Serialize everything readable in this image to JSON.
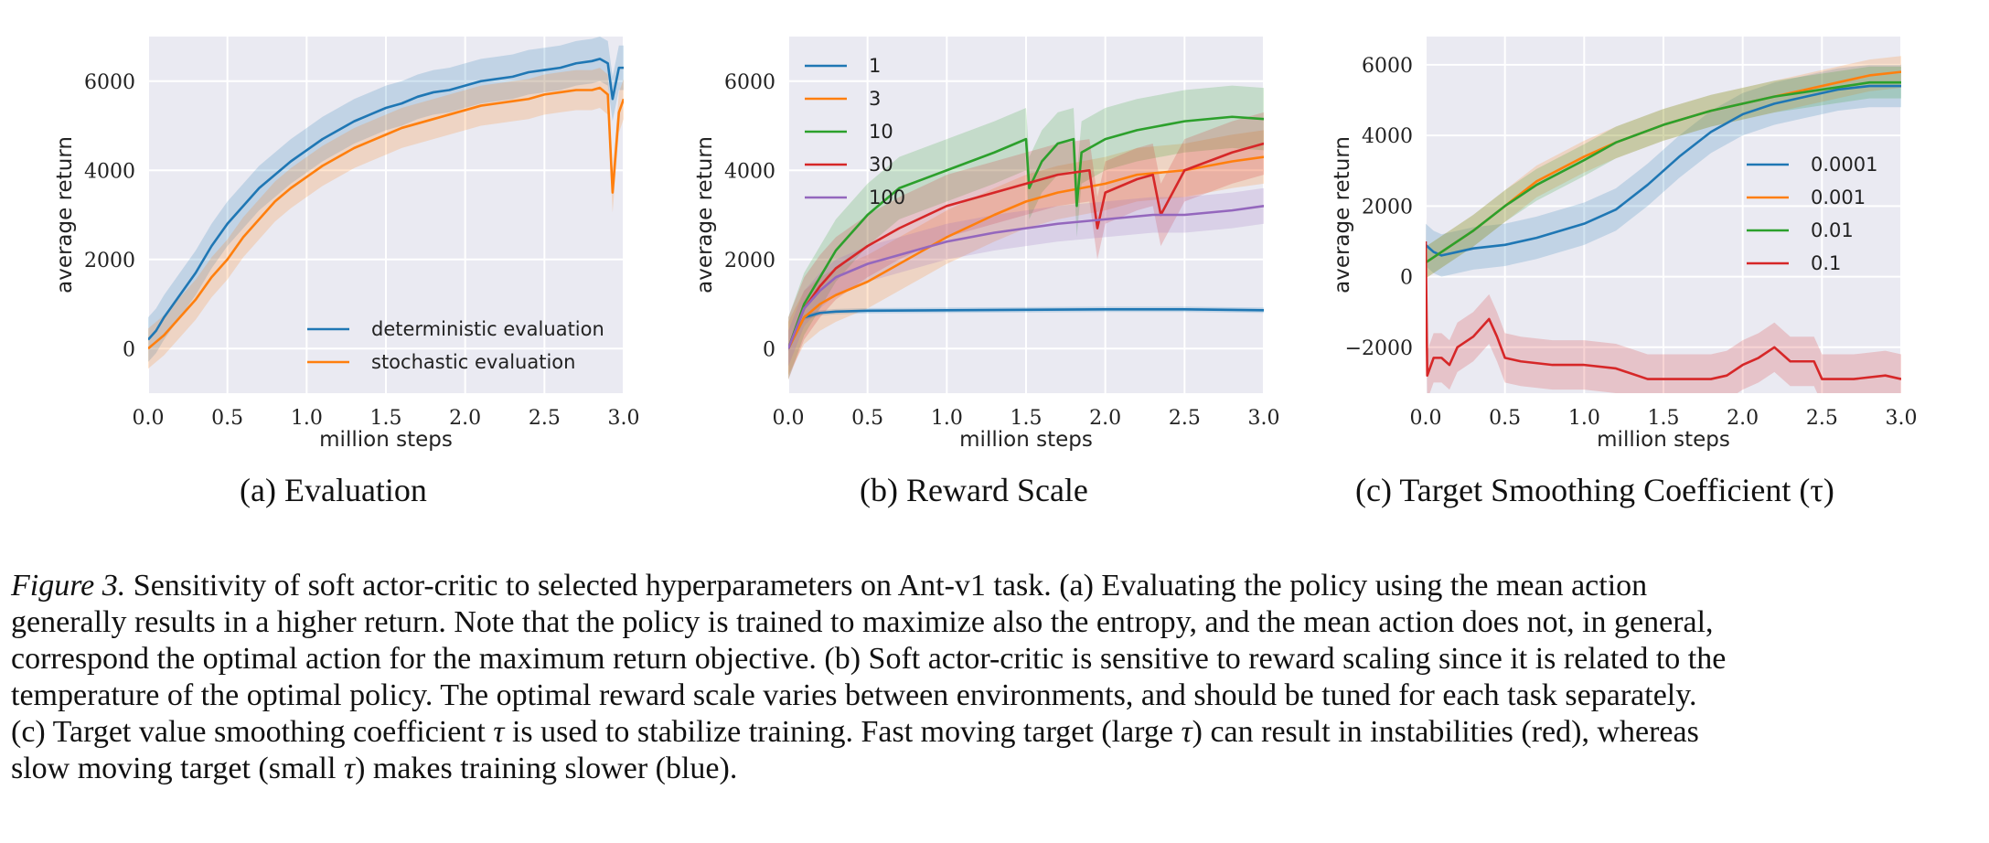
{
  "colors": {
    "blue": "#1f77b4",
    "orange": "#ff7f0e",
    "green": "#2ca02c",
    "red": "#d62728",
    "purple": "#9467bd",
    "panel_bg": "#eaeaf2"
  },
  "chart_data": [
    {
      "id": "a",
      "type": "line",
      "subcaption_label": "(a)",
      "subcaption_text": "Evaluation",
      "xlabel": "million steps",
      "ylabel": "average return",
      "xlim": [
        0,
        3.0
      ],
      "ylim": [
        -1000,
        7000
      ],
      "xticks": [
        0.0,
        0.5,
        1.0,
        1.5,
        2.0,
        2.5,
        3.0
      ],
      "xtick_labels": [
        "0.0",
        "0.5",
        "1.0",
        "1.5",
        "2.0",
        "2.5",
        "3.0"
      ],
      "yticks": [
        0,
        2000,
        4000,
        6000
      ],
      "ytick_labels": [
        "0",
        "2000",
        "4000",
        "6000"
      ],
      "legend_position": "bottom-right",
      "series": [
        {
          "name": "deterministic evaluation",
          "color": "#1f77b4",
          "x": [
            0,
            0.05,
            0.1,
            0.2,
            0.3,
            0.4,
            0.5,
            0.6,
            0.7,
            0.8,
            0.9,
            1.0,
            1.1,
            1.2,
            1.3,
            1.4,
            1.5,
            1.6,
            1.7,
            1.8,
            1.9,
            2.0,
            2.1,
            2.2,
            2.3,
            2.4,
            2.5,
            2.6,
            2.7,
            2.8,
            2.85,
            2.9,
            2.93,
            2.97,
            3.0
          ],
          "y": [
            200,
            400,
            700,
            1200,
            1700,
            2300,
            2800,
            3200,
            3600,
            3900,
            4200,
            4450,
            4700,
            4900,
            5100,
            5250,
            5400,
            5500,
            5650,
            5750,
            5800,
            5900,
            6000,
            6050,
            6100,
            6200,
            6250,
            6300,
            6400,
            6450,
            6500,
            6400,
            5600,
            6300,
            6300
          ],
          "band": 500
        },
        {
          "name": "stochastic evaluation",
          "color": "#ff7f0e",
          "x": [
            0,
            0.05,
            0.1,
            0.2,
            0.3,
            0.4,
            0.5,
            0.6,
            0.7,
            0.8,
            0.9,
            1.0,
            1.1,
            1.2,
            1.3,
            1.4,
            1.5,
            1.6,
            1.7,
            1.8,
            1.9,
            2.0,
            2.1,
            2.2,
            2.3,
            2.4,
            2.5,
            2.6,
            2.7,
            2.8,
            2.85,
            2.9,
            2.93,
            2.97,
            3.0
          ],
          "y": [
            0,
            150,
            300,
            700,
            1100,
            1600,
            2000,
            2500,
            2900,
            3300,
            3600,
            3850,
            4100,
            4300,
            4500,
            4650,
            4800,
            4950,
            5050,
            5150,
            5250,
            5350,
            5450,
            5500,
            5550,
            5600,
            5700,
            5750,
            5800,
            5800,
            5850,
            5700,
            3500,
            5300,
            5600
          ],
          "band": 450
        }
      ]
    },
    {
      "id": "b",
      "type": "line",
      "subcaption_label": "(b)",
      "subcaption_text": "Reward Scale",
      "xlabel": "million steps",
      "ylabel": "average return",
      "xlim": [
        0,
        3.0
      ],
      "ylim": [
        -1000,
        7000
      ],
      "xticks": [
        0.0,
        0.5,
        1.0,
        1.5,
        2.0,
        2.5,
        3.0
      ],
      "xtick_labels": [
        "0.0",
        "0.5",
        "1.0",
        "1.5",
        "2.0",
        "2.5",
        "3.0"
      ],
      "yticks": [
        0,
        2000,
        4000,
        6000
      ],
      "ytick_labels": [
        "0",
        "2000",
        "4000",
        "6000"
      ],
      "legend_position": "top-left",
      "series": [
        {
          "name": "1",
          "color": "#1f77b4",
          "x": [
            0,
            0.1,
            0.2,
            0.3,
            0.5,
            1.0,
            1.5,
            2.0,
            2.5,
            3.0
          ],
          "y": [
            0,
            700,
            800,
            830,
            850,
            860,
            870,
            880,
            880,
            860
          ],
          "band": 60
        },
        {
          "name": "3",
          "color": "#ff7f0e",
          "x": [
            0,
            0.1,
            0.2,
            0.3,
            0.5,
            0.7,
            1.0,
            1.3,
            1.5,
            1.7,
            2.0,
            2.2,
            2.5,
            2.8,
            3.0
          ],
          "y": [
            0,
            700,
            1000,
            1200,
            1500,
            1900,
            2500,
            3000,
            3300,
            3500,
            3700,
            3900,
            4000,
            4200,
            4300
          ],
          "band": 600
        },
        {
          "name": "10",
          "color": "#2ca02c",
          "x": [
            0,
            0.1,
            0.2,
            0.3,
            0.5,
            0.7,
            1.0,
            1.3,
            1.5,
            1.52,
            1.6,
            1.7,
            1.8,
            1.82,
            1.85,
            2.0,
            2.2,
            2.5,
            2.8,
            3.0
          ],
          "y": [
            0,
            1000,
            1600,
            2200,
            3000,
            3600,
            4000,
            4400,
            4700,
            3600,
            4200,
            4600,
            4700,
            3200,
            4400,
            4700,
            4900,
            5100,
            5200,
            5150
          ],
          "band": 700
        },
        {
          "name": "30",
          "color": "#d62728",
          "x": [
            0,
            0.1,
            0.2,
            0.3,
            0.5,
            0.7,
            1.0,
            1.3,
            1.5,
            1.7,
            1.9,
            1.95,
            2.0,
            2.2,
            2.3,
            2.35,
            2.5,
            2.8,
            3.0
          ],
          "y": [
            0,
            900,
            1400,
            1800,
            2300,
            2700,
            3200,
            3500,
            3700,
            3900,
            4000,
            2700,
            3500,
            3800,
            3900,
            3000,
            4000,
            4400,
            4600
          ],
          "band": 700
        },
        {
          "name": "100",
          "color": "#9467bd",
          "x": [
            0,
            0.1,
            0.2,
            0.3,
            0.5,
            0.7,
            1.0,
            1.3,
            1.5,
            1.7,
            2.0,
            2.3,
            2.5,
            2.8,
            3.0
          ],
          "y": [
            0,
            900,
            1300,
            1600,
            1900,
            2100,
            2400,
            2600,
            2700,
            2800,
            2900,
            3000,
            3000,
            3100,
            3200
          ],
          "band": 400
        }
      ]
    },
    {
      "id": "c",
      "type": "line",
      "subcaption_label": "(c)",
      "subcaption_text": "Target Smoothing Coefficient (τ)",
      "xlabel": "million steps",
      "ylabel": "average return",
      "xlim": [
        0,
        3.0
      ],
      "ylim": [
        -3300,
        6800
      ],
      "xticks": [
        0.0,
        0.5,
        1.0,
        1.5,
        2.0,
        2.5,
        3.0
      ],
      "xtick_labels": [
        "0.0",
        "0.5",
        "1.0",
        "1.5",
        "2.0",
        "2.5",
        "3.0"
      ],
      "yticks": [
        -2000,
        0,
        2000,
        4000,
        6000
      ],
      "ytick_labels": [
        "−2000",
        "0",
        "2000",
        "4000",
        "6000"
      ],
      "legend_position": "center-right",
      "series": [
        {
          "name": "0.0001",
          "color": "#1f77b4",
          "x": [
            0,
            0.05,
            0.1,
            0.2,
            0.3,
            0.5,
            0.7,
            1.0,
            1.2,
            1.4,
            1.6,
            1.8,
            2.0,
            2.2,
            2.4,
            2.6,
            2.8,
            3.0
          ],
          "y": [
            900,
            700,
            600,
            700,
            800,
            900,
            1100,
            1500,
            1900,
            2600,
            3400,
            4100,
            4600,
            4900,
            5100,
            5300,
            5400,
            5400
          ],
          "band": 600
        },
        {
          "name": "0.001",
          "color": "#ff7f0e",
          "x": [
            0,
            0.1,
            0.3,
            0.5,
            0.7,
            1.0,
            1.2,
            1.5,
            1.8,
            2.0,
            2.2,
            2.5,
            2.8,
            3.0
          ],
          "y": [
            400,
            700,
            1300,
            2000,
            2700,
            3400,
            3800,
            4300,
            4700,
            4900,
            5100,
            5400,
            5700,
            5800
          ],
          "band": 450
        },
        {
          "name": "0.01",
          "color": "#2ca02c",
          "x": [
            0,
            0.1,
            0.3,
            0.5,
            0.7,
            1.0,
            1.2,
            1.5,
            1.8,
            2.0,
            2.2,
            2.5,
            2.8,
            3.0
          ],
          "y": [
            400,
            700,
            1300,
            2000,
            2600,
            3300,
            3800,
            4300,
            4700,
            4900,
            5100,
            5300,
            5500,
            5500
          ],
          "band": 450
        },
        {
          "name": "0.1",
          "color": "#d62728",
          "x": [
            0,
            0.01,
            0.05,
            0.1,
            0.15,
            0.2,
            0.3,
            0.4,
            0.45,
            0.5,
            0.6,
            0.8,
            1.0,
            1.2,
            1.4,
            1.6,
            1.8,
            1.9,
            2.0,
            2.1,
            2.2,
            2.3,
            2.45,
            2.5,
            2.7,
            2.9,
            3.0
          ],
          "y": [
            1000,
            -2800,
            -2300,
            -2300,
            -2500,
            -2000,
            -1700,
            -1200,
            -1700,
            -2300,
            -2400,
            -2500,
            -2500,
            -2600,
            -2900,
            -2900,
            -2900,
            -2800,
            -2500,
            -2300,
            -2000,
            -2400,
            -2400,
            -2900,
            -2900,
            -2800,
            -2900
          ],
          "band": 700
        }
      ]
    }
  ],
  "caption": {
    "fig_label": "Figure 3.",
    "line1": "Sensitivity of soft actor-critic to selected hyperparameters on Ant-v1 task. (a) Evaluating the policy using the mean action",
    "line2": "generally results in a higher return. Note that the policy is trained to maximize also the entropy, and the mean action does not, in general,",
    "line3": "correspond the optimal action for the maximum return objective. (b) Soft actor-critic is sensitive to reward scaling since it is related to the",
    "line4": "temperature of the optimal policy. The optimal reward scale varies between environments, and should be tuned for each task separately.",
    "line5a": "(c) Target value smoothing coefficient",
    "tau": "τ",
    "line5b": "is used to stabilize training. Fast moving target (large",
    "line5c": ") can result in instabilities (red), whereas",
    "line6a": "slow moving target (small",
    "line6b": ") makes training slower (blue)."
  }
}
